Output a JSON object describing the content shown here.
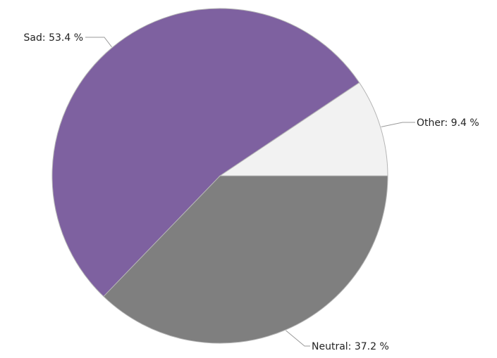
{
  "chart_data": {
    "type": "pie",
    "title": "",
    "slices": [
      {
        "label": "Neutral",
        "value": 37.2,
        "display": "Neutral: 37.2 %",
        "color": "#7f7f7f"
      },
      {
        "label": "Sad",
        "value": 53.4,
        "display": "Sad: 53.4 %",
        "color": "#7e61a0"
      },
      {
        "label": "Other",
        "value": 9.4,
        "display": "Other: 9.4 %",
        "color": "#f2f2f2"
      }
    ],
    "start_angle_deg": 0,
    "direction": "clockwise",
    "label_position": "outside with leader lines",
    "outline_color": "#b5b5b5",
    "leader_color": "#9a9a9a"
  }
}
